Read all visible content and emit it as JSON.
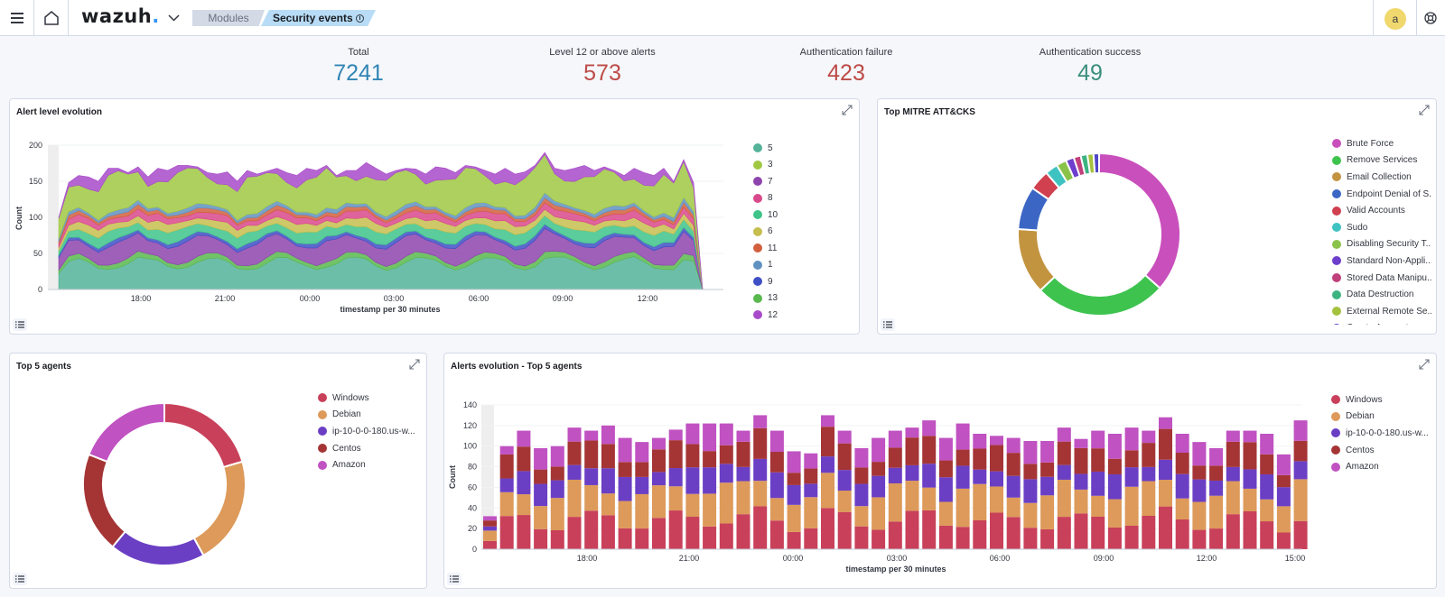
{
  "header": {
    "logo_text": "wazuh",
    "logo_dot": ".",
    "breadcrumb": {
      "parent": "Modules",
      "current": "Security events"
    },
    "avatar_letter": "a"
  },
  "metrics": [
    {
      "label": "Total",
      "value": "7241",
      "color": "#3185b5"
    },
    {
      "label": "Level 12 or above alerts",
      "value": "573",
      "color": "#bd4b47"
    },
    {
      "label": "Authentication failure",
      "value": "423",
      "color": "#bd4b47"
    },
    {
      "label": "Authentication success",
      "value": "49",
      "color": "#3a8f7d"
    }
  ],
  "panels": {
    "alert_level": {
      "title": "Alert level evolution"
    },
    "mitre": {
      "title": "Top MITRE ATT&CKS"
    },
    "top_agents": {
      "title": "Top 5 agents"
    },
    "agents_evolution": {
      "title": "Alerts evolution - Top 5 agents"
    }
  },
  "chart_data": [
    {
      "id": "alert-level-evolution",
      "type": "area",
      "xlabel": "timestamp per 30 minutes",
      "ylabel": "Count",
      "ylim": [
        0,
        200
      ],
      "yticks": [
        "0",
        "50",
        "100",
        "150",
        "200"
      ],
      "xticks": [
        "18:00",
        "21:00",
        "00:00",
        "03:00",
        "06:00",
        "09:00",
        "12:00"
      ],
      "series_names": [
        "5",
        "3",
        "7",
        "8",
        "10",
        "6",
        "11",
        "1",
        "9",
        "13",
        "12"
      ],
      "series_colors": [
        "#54b399",
        "#a0c843",
        "#8e44ad",
        "#d9488b",
        "#3ec389",
        "#c6be4e",
        "#d25f3d",
        "#6092c0",
        "#3f4fc5",
        "#59b84e",
        "#a84ac9"
      ],
      "totals": [
        100,
        148,
        158,
        156,
        150,
        168,
        168,
        162,
        170,
        156,
        168,
        165,
        172,
        172,
        170,
        162,
        160,
        163,
        150,
        165,
        160,
        164,
        168,
        162,
        158,
        168,
        165,
        172,
        158,
        165,
        165,
        176,
        168,
        160,
        165,
        168,
        167,
        160,
        170,
        168,
        162,
        172,
        170,
        165,
        160,
        168,
        160,
        163,
        172,
        190,
        168,
        165,
        168,
        172,
        165,
        170,
        165,
        158,
        168,
        162,
        158,
        168,
        150,
        180,
        148,
        0
      ]
    },
    {
      "id": "top-mitre",
      "type": "pie",
      "labels": [
        "Brute Force",
        "Remove Services",
        "Email Collection",
        "Endpoint Denial of S...",
        "Valid Accounts",
        "Sudo",
        "Disabling Security T...",
        "Standard Non-Appli...",
        "Stored Data Manipu...",
        "Data Destruction",
        "External Remote Se...",
        "Create Account"
      ],
      "values": [
        36.0,
        26.0,
        13.0,
        8.5,
        4.0,
        2.5,
        2.0,
        1.6,
        1.4,
        1.3,
        1.2,
        1.1
      ],
      "colors": [
        "#c94fbc",
        "#3ec34f",
        "#c39440",
        "#3b66c4",
        "#d0404f",
        "#3ec3c1",
        "#8bc34a",
        "#6d3fcc",
        "#c0407a",
        "#3cb380",
        "#a4c23e",
        "#5046c9"
      ]
    },
    {
      "id": "top-5-agents",
      "type": "pie",
      "labels": [
        "Windows",
        "Debian",
        "ip-10-0-0-180.us-w...",
        "Centos",
        "Amazon"
      ],
      "values": [
        20.5,
        21.5,
        19.0,
        20.0,
        19.0
      ],
      "colors": [
        "#c9405a",
        "#dd9a5a",
        "#6b3fc4",
        "#a53535",
        "#c052c2"
      ]
    },
    {
      "id": "alerts-evolution-top-5-agents",
      "type": "bar",
      "stacked": true,
      "xlabel": "timestamp per 30 minutes",
      "ylabel": "Count",
      "ylim": [
        0,
        140
      ],
      "yticks": [
        "0",
        "20",
        "40",
        "60",
        "80",
        "100",
        "120",
        "140"
      ],
      "xticks": [
        "18:00",
        "21:00",
        "00:00",
        "03:00",
        "06:00",
        "09:00",
        "12:00",
        "15:00"
      ],
      "series": [
        {
          "name": "Windows",
          "color": "#c9405a"
        },
        {
          "name": "Debian",
          "color": "#dd9a5a"
        },
        {
          "name": "ip-10-0-0-180.us-w...",
          "color": "#6b3fc4"
        },
        {
          "name": "Centos",
          "color": "#a53535"
        },
        {
          "name": "Amazon",
          "color": "#c052c2"
        }
      ],
      "totals": [
        32,
        100,
        115,
        98,
        100,
        118,
        115,
        120,
        108,
        104,
        108,
        116,
        122,
        122,
        122,
        115,
        130,
        115,
        95,
        93,
        130,
        115,
        98,
        108,
        115,
        118,
        125,
        108,
        122,
        112,
        110,
        108,
        105,
        105,
        118,
        107,
        115,
        112,
        118,
        115,
        128,
        112,
        104,
        98,
        115,
        115,
        112,
        92,
        125
      ]
    }
  ]
}
